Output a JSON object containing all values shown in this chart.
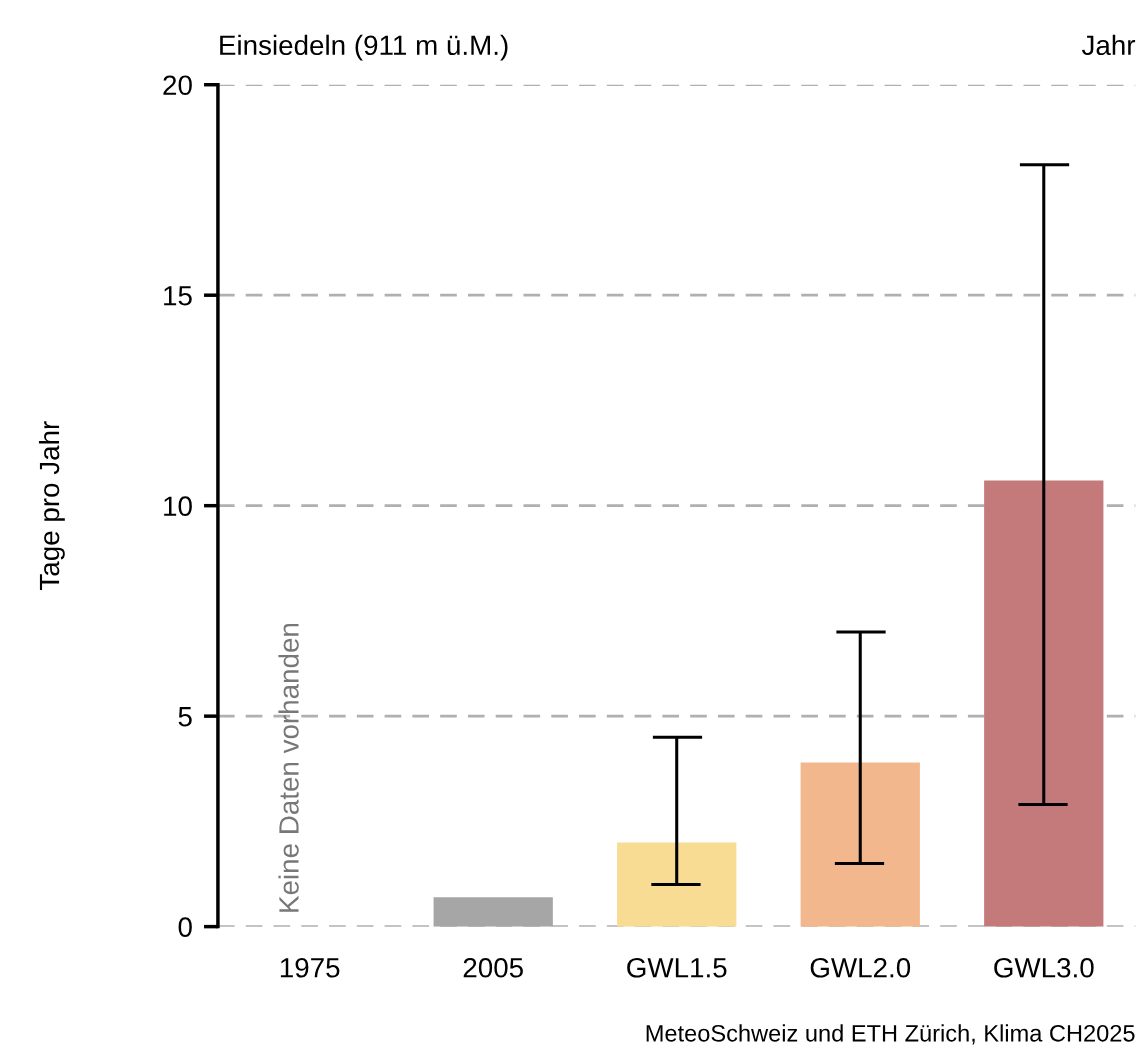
{
  "chart_data": {
    "type": "bar",
    "title": "Einsiedeln (911 m ü.M.)",
    "subtitle": "Jahr",
    "ylabel": "Tage pro Jahr",
    "categories": [
      "1975",
      "2005",
      "GWL1.5",
      "GWL2.0",
      "GWL3.0"
    ],
    "values": [
      null,
      0.7,
      2.0,
      3.9,
      10.6
    ],
    "colors": [
      "#a6a6a6",
      "#a6a6a6",
      "#f9dc94",
      "#f3b78d",
      "#c47a7a"
    ],
    "errors": [
      null,
      null,
      [
        1.0,
        4.5
      ],
      [
        1.5,
        7.0
      ],
      [
        2.9,
        18.1
      ]
    ],
    "ylim": [
      0,
      20
    ],
    "yticks": [
      0,
      5,
      10,
      15,
      20
    ],
    "grid": "y",
    "annotations": [
      "Keine Daten vorhanden",
      "MeteoSchweiz und ETH Zürich, Klima CH2025"
    ]
  }
}
